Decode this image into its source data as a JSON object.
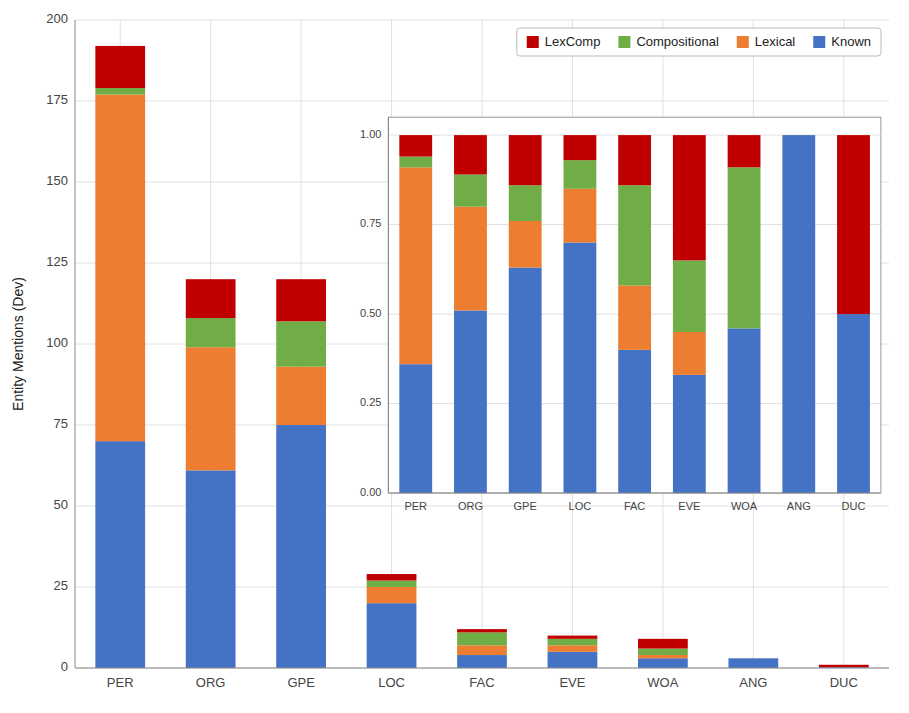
{
  "chart_data": [
    {
      "type": "bar",
      "stacked": true,
      "ylabel": "Entity Mentions (Dev)",
      "categories": [
        "PER",
        "ORG",
        "GPE",
        "LOC",
        "FAC",
        "EVE",
        "WOA",
        "ANG",
        "DUC"
      ],
      "series": [
        {
          "name": "Known",
          "color": "#4472c4",
          "values": [
            70,
            61,
            75,
            20,
            4,
            5,
            3,
            3,
            0.2
          ]
        },
        {
          "name": "Lexical",
          "color": "#ed7d31",
          "values": [
            107,
            38,
            18,
            5,
            3,
            2,
            1,
            0,
            0
          ]
        },
        {
          "name": "Compositional",
          "color": "#70ad47",
          "values": [
            2,
            9,
            14,
            2,
            4,
            2,
            2,
            0,
            0
          ]
        },
        {
          "name": "LexComp",
          "color": "#c00000",
          "values": [
            13,
            12,
            13,
            2,
            1,
            1,
            3,
            0,
            0.8
          ]
        }
      ],
      "ylim": [
        0,
        200
      ],
      "yticks": [
        0,
        25,
        50,
        75,
        100,
        125,
        150,
        175,
        200
      ],
      "grid": true,
      "legend": "upper right"
    },
    {
      "type": "bar",
      "stacked": true,
      "categories": [
        "PER",
        "ORG",
        "GPE",
        "LOC",
        "FAC",
        "EVE",
        "WOA",
        "ANG",
        "DUC"
      ],
      "series": [
        {
          "color": "#4472c4",
          "values": [
            0.36,
            0.51,
            0.63,
            0.7,
            0.4,
            0.33,
            0.46,
            1.0,
            0.5
          ]
        },
        {
          "color": "#ed7d31",
          "values": [
            0.55,
            0.29,
            0.13,
            0.15,
            0.18,
            0.12,
            0.0,
            0.0,
            0.0
          ]
        },
        {
          "color": "#70ad47",
          "values": [
            0.03,
            0.09,
            0.1,
            0.08,
            0.28,
            0.2,
            0.45,
            0.0,
            0.0
          ]
        },
        {
          "color": "#c00000",
          "values": [
            0.06,
            0.11,
            0.14,
            0.07,
            0.14,
            0.35,
            0.09,
            0.0,
            0.5
          ]
        }
      ],
      "ylim": [
        0,
        1.05
      ],
      "yticks": [
        {
          "value": 0,
          "label": "0.00"
        },
        0.25,
        {
          "value": 0.5,
          "label": "0.50"
        },
        0.75,
        {
          "value": 1,
          "label": "1.00"
        }
      ],
      "grid": "y"
    }
  ]
}
